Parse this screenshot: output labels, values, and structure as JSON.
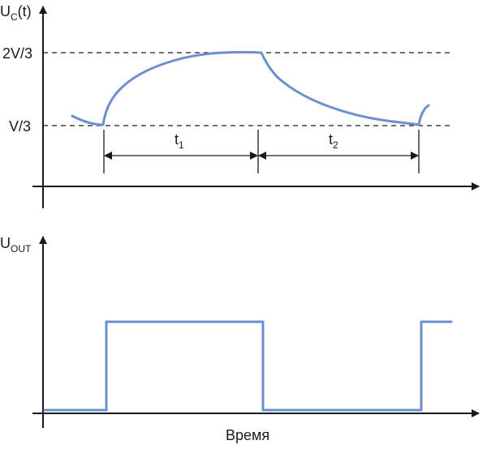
{
  "top_plot": {
    "y_label_main": "U",
    "y_label_sub": "C",
    "y_label_tail": "(t)",
    "level_high": "2V/3",
    "level_low": "V/3",
    "interval_1_main": "t",
    "interval_1_sub": "1",
    "interval_2_main": "t",
    "interval_2_sub": "2"
  },
  "bottom_plot": {
    "y_label_main": "U",
    "y_label_sub": "OUT",
    "x_label": "Время"
  },
  "colors": {
    "waveform": "#6b8fcf",
    "axis": "#1a1a1a"
  }
}
